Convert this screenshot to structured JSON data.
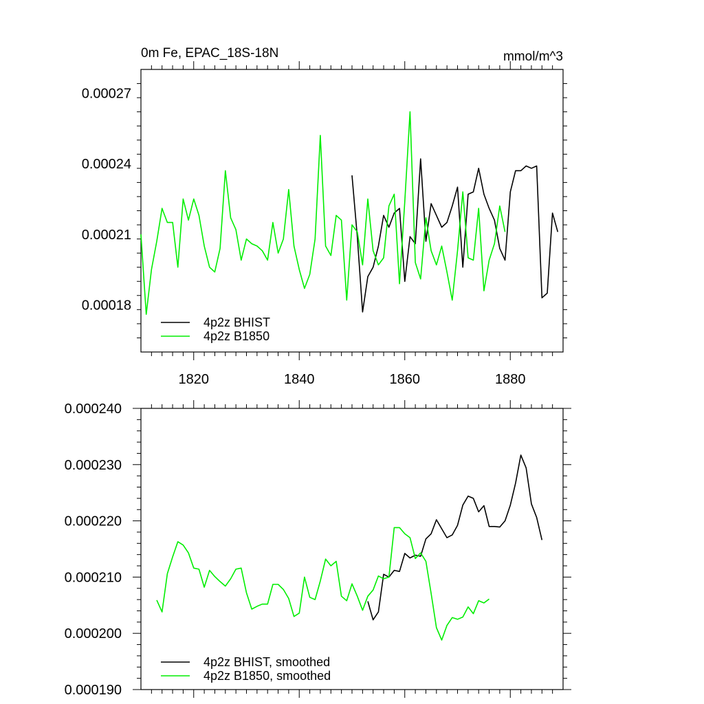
{
  "chart_data": [
    {
      "type": "line",
      "title": "0m Fe, EPAC_18S-18N",
      "units": "mmol/m^3",
      "xlim": [
        1810,
        1890
      ],
      "ylim": [
        0.00016,
        0.00028
      ],
      "x_ticks": [
        1820,
        1840,
        1860,
        1880
      ],
      "y_ticks": [
        0.00018,
        0.00021,
        0.00024,
        0.00027
      ],
      "x_tick_labels": [
        "1820",
        "1840",
        "1860",
        "1880"
      ],
      "y_tick_labels": [
        "0.00018",
        "0.00021",
        "0.00024",
        "0.00027"
      ],
      "legend": {
        "position": "bottom-left",
        "entries": [
          "4p2z BHIST",
          "4p2z B1850"
        ]
      },
      "series": [
        {
          "name": "4p2z BHIST",
          "color": "#000000",
          "x": [
            1850,
            1851,
            1852,
            1853,
            1854,
            1855,
            1856,
            1857,
            1858,
            1859,
            1860,
            1861,
            1862,
            1863,
            1864,
            1865,
            1866,
            1867,
            1868,
            1869,
            1870,
            1871,
            1872,
            1873,
            1874,
            1875,
            1876,
            1877,
            1878,
            1879,
            1880,
            1881,
            1882,
            1883,
            1884,
            1885,
            1886,
            1887,
            1888,
            1889
          ],
          "values": [
            0.000235,
            0.000209,
            0.000177,
            0.000192,
            0.000196,
            0.000205,
            0.000218,
            0.000213,
            0.000219,
            0.000221,
            0.00019,
            0.000209,
            0.000206,
            0.000242,
            0.000207,
            0.000223,
            0.000218,
            0.000213,
            0.000215,
            0.000222,
            0.00023,
            0.000196,
            0.000227,
            0.000228,
            0.000238,
            0.000227,
            0.000221,
            0.000216,
            0.000204,
            0.000199,
            0.000228,
            0.000237,
            0.000237,
            0.000239,
            0.000238,
            0.000239,
            0.000183,
            0.000185,
            0.000219,
            0.000211
          ]
        },
        {
          "name": "4p2z B1850",
          "color": "#00ee00",
          "x": [
            1810,
            1811,
            1812,
            1813,
            1814,
            1815,
            1816,
            1817,
            1818,
            1819,
            1820,
            1821,
            1822,
            1823,
            1824,
            1825,
            1826,
            1827,
            1828,
            1829,
            1830,
            1831,
            1832,
            1833,
            1834,
            1835,
            1836,
            1837,
            1838,
            1839,
            1840,
            1841,
            1842,
            1843,
            1844,
            1845,
            1846,
            1847,
            1848,
            1849,
            1850,
            1851,
            1852,
            1853,
            1854,
            1855,
            1856,
            1857,
            1858,
            1859,
            1860,
            1861,
            1862,
            1863,
            1864,
            1865,
            1866,
            1867,
            1868,
            1869,
            1870,
            1871,
            1872,
            1873,
            1874,
            1875,
            1876,
            1877,
            1878,
            1879
          ],
          "values": [
            0.00021,
            0.000176,
            0.000195,
            0.000207,
            0.000221,
            0.000215,
            0.000215,
            0.000196,
            0.000225,
            0.000216,
            0.000225,
            0.000218,
            0.000205,
            0.000196,
            0.000194,
            0.000204,
            0.000237,
            0.000217,
            0.000212,
            0.000199,
            0.000208,
            0.000206,
            0.000205,
            0.000203,
            0.000199,
            0.000215,
            0.000202,
            0.000208,
            0.000229,
            0.000205,
            0.000195,
            0.000187,
            0.000193,
            0.000208,
            0.000252,
            0.000205,
            0.000201,
            0.000218,
            0.000216,
            0.000182,
            0.000214,
            0.000211,
            0.000197,
            0.000225,
            0.000203,
            0.000197,
            0.0002,
            0.000222,
            0.000227,
            0.000189,
            0.000224,
            0.000262,
            0.000198,
            0.000191,
            0.000217,
            0.000203,
            0.000197,
            0.000205,
            0.000194,
            0.000182,
            0.000203,
            0.000228,
            0.0002,
            0.000199,
            0.000221,
            0.000186,
            0.000199,
            0.000206,
            0.000222,
            0.000211
          ]
        }
      ]
    },
    {
      "type": "line",
      "xlim": [
        1810,
        1890
      ],
      "ylim": [
        0.00019,
        0.00024
      ],
      "x_ticks": [
        1820,
        1840,
        1860,
        1880
      ],
      "y_ticks": [
        0.00019,
        0.0002,
        0.00021,
        0.00022,
        0.00023,
        0.00024
      ],
      "y_tick_labels": [
        "0.000190",
        "0.000200",
        "0.000210",
        "0.000220",
        "0.000230",
        "0.000240"
      ],
      "legend": {
        "position": "bottom-left",
        "entries": [
          "4p2z BHIST, smoothed",
          "4p2z B1850, smoothed"
        ]
      },
      "series": [
        {
          "name": "4p2z BHIST, smoothed",
          "color": "#000000",
          "x": [
            1853,
            1854,
            1855,
            1856,
            1857,
            1858,
            1859,
            1860,
            1861,
            1862,
            1863,
            1864,
            1865,
            1866,
            1867,
            1868,
            1869,
            1870,
            1871,
            1872,
            1873,
            1874,
            1875,
            1876,
            1877,
            1878,
            1879,
            1880,
            1881,
            1882,
            1883,
            1884,
            1885,
            1886
          ],
          "values": [
            0.0002057,
            0.0002024,
            0.0002038,
            0.0002105,
            0.00021,
            0.0002112,
            0.000211,
            0.0002142,
            0.0002134,
            0.0002139,
            0.0002137,
            0.0002168,
            0.0002177,
            0.0002202,
            0.0002186,
            0.000217,
            0.0002175,
            0.0002192,
            0.0002228,
            0.0002244,
            0.000224,
            0.0002216,
            0.0002227,
            0.000219,
            0.000219,
            0.0002189,
            0.00022,
            0.0002228,
            0.0002267,
            0.0002317,
            0.0002294,
            0.000223,
            0.0002206,
            0.0002166
          ]
        },
        {
          "name": "4p2z B1850, smoothed",
          "color": "#00ee00",
          "x": [
            1813,
            1814,
            1815,
            1816,
            1817,
            1818,
            1819,
            1820,
            1821,
            1822,
            1823,
            1824,
            1825,
            1826,
            1827,
            1828,
            1829,
            1830,
            1831,
            1832,
            1833,
            1834,
            1835,
            1836,
            1837,
            1838,
            1839,
            1840,
            1841,
            1842,
            1843,
            1844,
            1845,
            1846,
            1847,
            1848,
            1849,
            1850,
            1851,
            1852,
            1853,
            1854,
            1855,
            1856,
            1857,
            1858,
            1859,
            1860,
            1861,
            1862,
            1863,
            1864,
            1865,
            1866,
            1867,
            1868,
            1869,
            1870,
            1871,
            1872,
            1873,
            1874,
            1875,
            1876
          ],
          "values": [
            0.0002059,
            0.0002038,
            0.0002106,
            0.0002136,
            0.0002163,
            0.0002157,
            0.0002143,
            0.0002116,
            0.0002114,
            0.0002082,
            0.0002112,
            0.0002101,
            0.0002092,
            0.0002084,
            0.0002097,
            0.0002114,
            0.0002116,
            0.0002072,
            0.0002043,
            0.0002048,
            0.0002052,
            0.0002052,
            0.0002087,
            0.0002087,
            0.0002078,
            0.0002062,
            0.000203,
            0.0002036,
            0.00021,
            0.0002064,
            0.000206,
            0.0002093,
            0.0002132,
            0.000212,
            0.0002128,
            0.0002066,
            0.0002058,
            0.0002088,
            0.0002066,
            0.0002041,
            0.0002066,
            0.0002077,
            0.0002102,
            0.0002097,
            0.00021,
            0.0002188,
            0.0002188,
            0.0002177,
            0.000217,
            0.0002133,
            0.0002143,
            0.0002128,
            0.0002071,
            0.000201,
            0.0001988,
            0.0002014,
            0.0002028,
            0.0002025,
            0.0002029,
            0.0002047,
            0.0002035,
            0.0002058,
            0.0002054,
            0.0002061
          ]
        }
      ]
    }
  ]
}
